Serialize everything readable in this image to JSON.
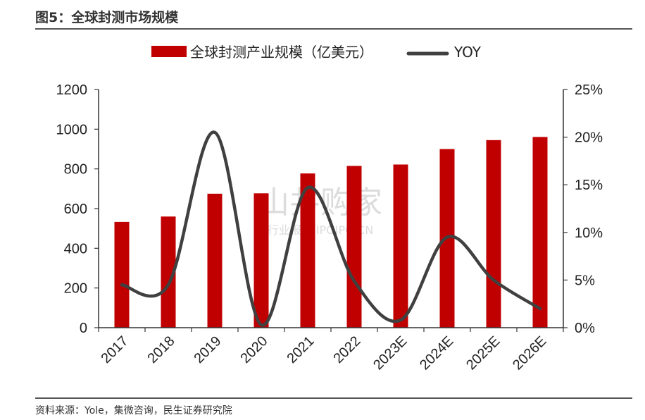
{
  "header": {
    "title": "图5：全球封测市场规模"
  },
  "footer": {
    "source": "资料来源：Yole，集微咨询，民生证券研究院"
  },
  "watermark": {
    "main": "山井购家",
    "sub": "行业报告 IPOIPO.CN"
  },
  "chart_data": {
    "type": "bar",
    "categories": [
      "2017",
      "2018",
      "2019",
      "2020",
      "2021",
      "2022",
      "2023E",
      "2024E",
      "2025E",
      "2026E"
    ],
    "series": [
      {
        "name": "全球封测产业规模（亿美元）",
        "type": "bar",
        "axis": "left",
        "color": "#c00000",
        "values": [
          533,
          560,
          675,
          677,
          777,
          815,
          822,
          900,
          945,
          961
        ]
      },
      {
        "name": "YOY",
        "type": "line",
        "axis": "right",
        "color": "#404040",
        "values": [
          0.045,
          0.045,
          0.205,
          0.003,
          0.147,
          0.049,
          0.008,
          0.095,
          0.05,
          0.02
        ]
      }
    ],
    "left_axis": {
      "min": 0,
      "max": 1200,
      "step": 200,
      "ticks": [
        "0",
        "200",
        "400",
        "600",
        "800",
        "1000",
        "1200"
      ]
    },
    "right_axis": {
      "min": 0,
      "max": 0.25,
      "step": 0.05,
      "ticks": [
        "0%",
        "5%",
        "10%",
        "15%",
        "20%",
        "25%"
      ]
    },
    "legend": "top-center",
    "grid": false
  }
}
